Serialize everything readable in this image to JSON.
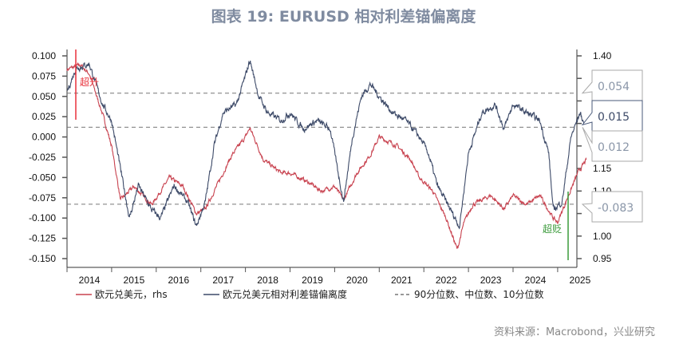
{
  "title": "图表 19: EURUSD 相对利差锚偏离度",
  "source": "资料来源：Macrobond，兴业研究",
  "chart_data": {
    "type": "line",
    "x_ticks": [
      "2014",
      "2015",
      "2016",
      "2017",
      "2018",
      "2019",
      "2020",
      "2021",
      "2022",
      "2023",
      "2024",
      "2025"
    ],
    "y_left": {
      "range": [
        -0.15,
        0.1
      ],
      "ticks": [
        "0.100",
        "0.075",
        "0.050",
        "0.025",
        "0.000",
        "-0.025",
        "-0.050",
        "-0.075",
        "-0.100",
        "-0.125",
        "-0.150"
      ]
    },
    "y_right": {
      "range": [
        0.95,
        1.4
      ],
      "ticks_visible": [
        "1.40",
        "1.15",
        "1.10",
        "1.00",
        "0.95"
      ]
    },
    "series": [
      {
        "name": "欧元兑美元，rhs",
        "axis": "right",
        "color": "#c8424f",
        "points": [
          [
            2014.0,
            1.37
          ],
          [
            2014.3,
            1.38
          ],
          [
            2014.5,
            1.36
          ],
          [
            2014.8,
            1.27
          ],
          [
            2015.0,
            1.2
          ],
          [
            2015.2,
            1.08
          ],
          [
            2015.5,
            1.11
          ],
          [
            2015.9,
            1.07
          ],
          [
            2016.3,
            1.13
          ],
          [
            2016.6,
            1.11
          ],
          [
            2016.9,
            1.05
          ],
          [
            2017.1,
            1.06
          ],
          [
            2017.4,
            1.12
          ],
          [
            2017.7,
            1.18
          ],
          [
            2018.0,
            1.22
          ],
          [
            2018.1,
            1.24
          ],
          [
            2018.4,
            1.17
          ],
          [
            2018.8,
            1.14
          ],
          [
            2019.0,
            1.14
          ],
          [
            2019.4,
            1.12
          ],
          [
            2019.7,
            1.1
          ],
          [
            2020.0,
            1.11
          ],
          [
            2020.2,
            1.08
          ],
          [
            2020.5,
            1.14
          ],
          [
            2020.8,
            1.18
          ],
          [
            2021.0,
            1.22
          ],
          [
            2021.4,
            1.2
          ],
          [
            2021.7,
            1.17
          ],
          [
            2021.9,
            1.13
          ],
          [
            2022.2,
            1.1
          ],
          [
            2022.5,
            1.04
          ],
          [
            2022.75,
            0.97
          ],
          [
            2022.9,
            1.03
          ],
          [
            2023.1,
            1.07
          ],
          [
            2023.5,
            1.09
          ],
          [
            2023.8,
            1.06
          ],
          [
            2024.0,
            1.09
          ],
          [
            2024.3,
            1.07
          ],
          [
            2024.6,
            1.09
          ],
          [
            2024.9,
            1.04
          ],
          [
            2025.0,
            1.03
          ],
          [
            2025.2,
            1.08
          ],
          [
            2025.45,
            1.14
          ],
          [
            2025.65,
            1.17
          ]
        ]
      },
      {
        "name": "欧元兑美元相对利差锚偏离度",
        "axis": "left",
        "color": "#3d4a68",
        "points": [
          [
            2014.0,
            0.055
          ],
          [
            2014.2,
            0.085
          ],
          [
            2014.5,
            0.09
          ],
          [
            2014.8,
            0.04
          ],
          [
            2015.0,
            0.02
          ],
          [
            2015.2,
            -0.04
          ],
          [
            2015.4,
            -0.1
          ],
          [
            2015.6,
            -0.06
          ],
          [
            2015.9,
            -0.09
          ],
          [
            2016.1,
            -0.1
          ],
          [
            2016.4,
            -0.06
          ],
          [
            2016.7,
            -0.08
          ],
          [
            2016.9,
            -0.11
          ],
          [
            2017.1,
            -0.08
          ],
          [
            2017.3,
            -0.01
          ],
          [
            2017.5,
            0.03
          ],
          [
            2017.8,
            0.04
          ],
          [
            2018.0,
            0.075
          ],
          [
            2018.1,
            0.095
          ],
          [
            2018.3,
            0.05
          ],
          [
            2018.5,
            0.03
          ],
          [
            2018.8,
            0.02
          ],
          [
            2019.0,
            0.03
          ],
          [
            2019.3,
            0.01
          ],
          [
            2019.6,
            0.02
          ],
          [
            2019.9,
            0.01
          ],
          [
            2020.0,
            -0.02
          ],
          [
            2020.2,
            -0.08
          ],
          [
            2020.4,
            0.0
          ],
          [
            2020.6,
            0.05
          ],
          [
            2020.8,
            0.065
          ],
          [
            2021.0,
            0.05
          ],
          [
            2021.3,
            0.03
          ],
          [
            2021.6,
            0.02
          ],
          [
            2021.9,
            0.0
          ],
          [
            2022.1,
            -0.02
          ],
          [
            2022.3,
            -0.06
          ],
          [
            2022.6,
            -0.09
          ],
          [
            2022.8,
            -0.11
          ],
          [
            2023.0,
            -0.02
          ],
          [
            2023.3,
            0.03
          ],
          [
            2023.6,
            0.04
          ],
          [
            2023.8,
            0.01
          ],
          [
            2024.0,
            0.04
          ],
          [
            2024.3,
            0.03
          ],
          [
            2024.6,
            0.02
          ],
          [
            2024.8,
            -0.02
          ],
          [
            2024.9,
            -0.09
          ],
          [
            2025.1,
            -0.08
          ],
          [
            2025.3,
            0.0
          ],
          [
            2025.5,
            0.03
          ],
          [
            2025.6,
            0.015
          ]
        ]
      }
    ],
    "reference_lines": {
      "name": "90分位数、中位数、10分位数",
      "values": [
        0.054,
        0.012,
        -0.083
      ],
      "style": "dashed",
      "color": "#777777"
    },
    "callouts": [
      {
        "label": "0.054",
        "value": 0.054
      },
      {
        "label": "0.015",
        "value": 0.015
      },
      {
        "label": "0.012",
        "value": 0.012
      },
      {
        "label": "-0.083",
        "value": -0.083
      }
    ],
    "annotations": [
      {
        "text": "超升",
        "color": "#e8303a"
      },
      {
        "text": "超贬",
        "color": "#3a9a3a"
      }
    ],
    "legend_position": "bottom"
  }
}
